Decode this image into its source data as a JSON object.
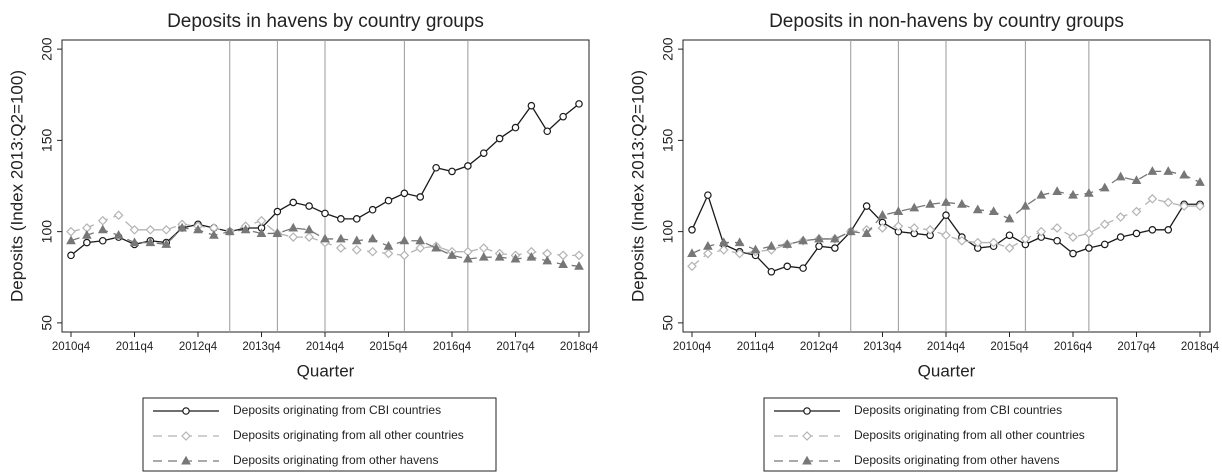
{
  "chart_data": [
    {
      "type": "line",
      "title": "Deposits in havens by country groups",
      "x_label": "Quarter",
      "y_label": "Deposits (Index 2013:Q2=100)",
      "categories": [
        "2010q4",
        null,
        null,
        null,
        "2011q4",
        null,
        null,
        null,
        "2012q4",
        null,
        null,
        null,
        "2013q4",
        null,
        null,
        null,
        "2014q4",
        null,
        null,
        null,
        "2015q4",
        null,
        null,
        null,
        "2016q4",
        null,
        null,
        null,
        "2017q4",
        null,
        null,
        null,
        "2018q4"
      ],
      "ylim": [
        45,
        205
      ],
      "yticks": [
        50,
        100,
        150,
        200
      ],
      "vlines": [
        10,
        13,
        16,
        21,
        25
      ],
      "series": [
        {
          "name": "Deposits originating from CBI countries",
          "color": "#1a1a1a",
          "marker": "circle",
          "dash": "solid",
          "values": [
            87,
            94,
            95,
            97,
            93,
            95,
            94,
            102,
            104,
            102,
            100,
            102,
            102,
            111,
            116,
            114,
            110,
            107,
            107,
            112,
            117,
            121,
            119,
            135,
            133,
            136,
            143,
            151,
            157,
            169,
            155,
            163,
            170
          ]
        },
        {
          "name": "Deposits originating from all other countries",
          "color": "#b4b4b4",
          "marker": "diamond",
          "dash": "dashed",
          "values": [
            100,
            102,
            106,
            109,
            101,
            101,
            101,
            104,
            103,
            102,
            100,
            103,
            106,
            99,
            97,
            97,
            94,
            91,
            90,
            89,
            88,
            87,
            91,
            92,
            89,
            89,
            91,
            88,
            87,
            89,
            88,
            87,
            87
          ]
        },
        {
          "name": "Deposits originating from other havens",
          "color": "#777777",
          "marker": "triangle",
          "dash": "dashed",
          "values": [
            95,
            98,
            101,
            98,
            94,
            94,
            93,
            102,
            101,
            98,
            100,
            101,
            99,
            99,
            102,
            101,
            96,
            96,
            95,
            96,
            92,
            95,
            95,
            91,
            87,
            85,
            86,
            86,
            85,
            86,
            84,
            82,
            81
          ]
        }
      ]
    },
    {
      "type": "line",
      "title": "Deposits in non-havens by country groups",
      "x_label": "Quarter",
      "y_label": "Deposits (Index 2013:Q2=100)",
      "categories": [
        "2010q4",
        null,
        null,
        null,
        "2011q4",
        null,
        null,
        null,
        "2012q4",
        null,
        null,
        null,
        "2013q4",
        null,
        null,
        null,
        "2014q4",
        null,
        null,
        null,
        "2015q4",
        null,
        null,
        null,
        "2016q4",
        null,
        null,
        null,
        "2017q4",
        null,
        null,
        null,
        "2018q4"
      ],
      "ylim": [
        45,
        205
      ],
      "yticks": [
        50,
        100,
        150,
        200
      ],
      "vlines": [
        10,
        13,
        16,
        21,
        25
      ],
      "series": [
        {
          "name": "Deposits originating from CBI countries",
          "color": "#1a1a1a",
          "marker": "circle",
          "dash": "solid",
          "values": [
            101,
            120,
            93,
            89,
            87,
            78,
            81,
            80,
            92,
            91,
            100,
            114,
            105,
            100,
            99,
            98,
            109,
            97,
            91,
            92,
            98,
            93,
            97,
            95,
            88,
            91,
            93,
            97,
            99,
            101,
            101,
            115,
            115
          ]
        },
        {
          "name": "Deposits originating from all other countries",
          "color": "#b4b4b4",
          "marker": "diamond",
          "dash": "dashed",
          "values": [
            81,
            88,
            90,
            88,
            89,
            90,
            93,
            95,
            96,
            96,
            100,
            101,
            102,
            103,
            102,
            101,
            98,
            95,
            94,
            94,
            91,
            96,
            100,
            102,
            97,
            99,
            104,
            108,
            111,
            118,
            116,
            114,
            114
          ]
        },
        {
          "name": "Deposits originating from other havens",
          "color": "#777777",
          "marker": "triangle",
          "dash": "dashed",
          "values": [
            88,
            92,
            94,
            94,
            90,
            92,
            93,
            95,
            96,
            96,
            100,
            99,
            109,
            111,
            113,
            115,
            116,
            115,
            112,
            111,
            107,
            114,
            120,
            122,
            120,
            121,
            124,
            130,
            128,
            133,
            133,
            131,
            127
          ]
        }
      ]
    }
  ]
}
